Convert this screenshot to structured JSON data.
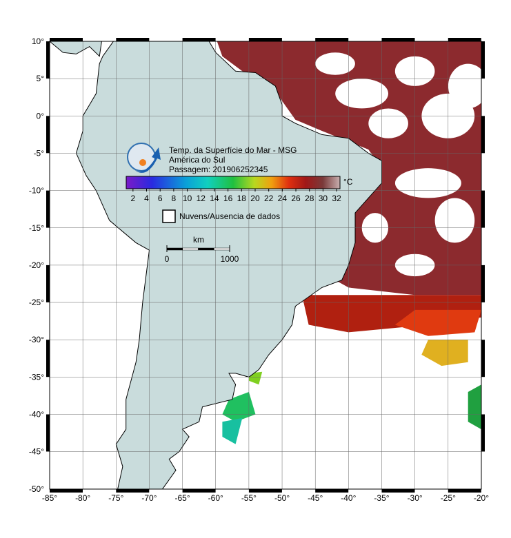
{
  "title": "Temp. da Superfície do Mar - MSG",
  "region": "América do Sul",
  "pass": "Passagem: 201906252345",
  "lat_labels": [
    "10°",
    "5°",
    "0°",
    "-5°",
    "-10°",
    "-15°",
    "-20°",
    "-25°",
    "-30°",
    "-35°",
    "-40°",
    "-45°",
    "-50°"
  ],
  "lon_labels": [
    "-85°",
    "-80°",
    "-75°",
    "-70°",
    "-65°",
    "-60°",
    "-55°",
    "-50°",
    "-45°",
    "-40°",
    "-35°",
    "-30°",
    "-25°",
    "-20°"
  ],
  "colorbar": {
    "lim": [
      1,
      32.5
    ],
    "ticks": [
      2,
      4,
      6,
      8,
      10,
      12,
      14,
      16,
      18,
      20,
      22,
      24,
      26,
      28,
      30,
      32
    ],
    "unit": "°C"
  },
  "legend": "Nuvens/Ausencia de dados",
  "scale_bar": {
    "unit": "km",
    "ticks": [
      0,
      1000
    ]
  }
}
